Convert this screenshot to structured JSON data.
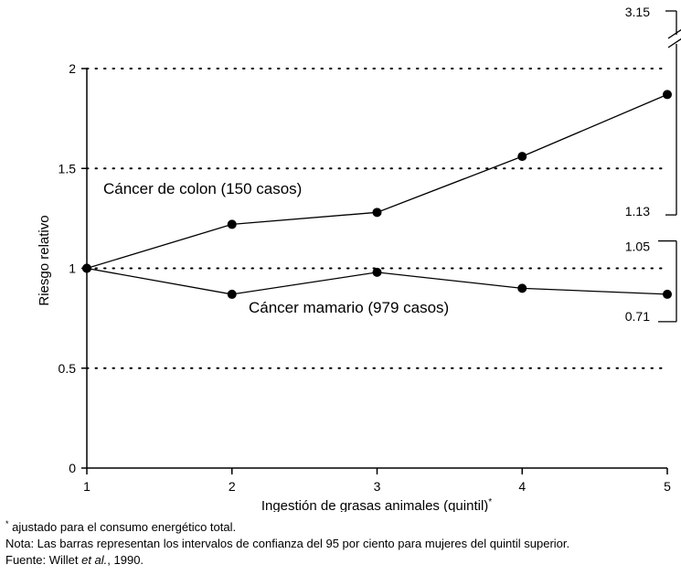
{
  "chart_data": {
    "type": "line",
    "xlabel": "Ingestión de grasas animales (quintil)",
    "xlabel_sup": "*",
    "ylabel": "Riesgo relativo",
    "x": [
      1,
      2,
      3,
      4,
      5
    ],
    "xticks": [
      "1",
      "2",
      "3",
      "4",
      "5"
    ],
    "ylim": [
      0,
      2
    ],
    "yticks": [
      {
        "value": 0,
        "label": "0"
      },
      {
        "value": 0.5,
        "label": "0.5"
      },
      {
        "value": 1,
        "label": "1"
      },
      {
        "value": 1.5,
        "label": "1.5"
      },
      {
        "value": 2,
        "label": "2"
      }
    ],
    "grid": "dotted horizontal",
    "series": [
      {
        "name": "Cáncer de colon (150 casos)",
        "values": [
          1.0,
          1.22,
          1.28,
          1.56,
          1.87
        ]
      },
      {
        "name": "Cáncer mamario (979 casos)",
        "values": [
          1.0,
          0.87,
          0.98,
          0.9,
          0.87
        ]
      }
    ],
    "confidence_intervals": [
      {
        "series": "Cáncer de colon (150 casos)",
        "x": 5,
        "low": 1.13,
        "high": 3.15,
        "low_label": "1.13",
        "high_label": "3.15",
        "axis_break": true
      },
      {
        "series": "Cáncer mamario (979 casos)",
        "x": 5,
        "low": 0.71,
        "high": 1.05,
        "low_label": "0.71",
        "high_label": "1.05"
      }
    ]
  },
  "notes": {
    "footnote_mark": "*",
    "footnote": " ajustado para el consumo energético total.",
    "nota": "Nota: Las barras representan los intervalos de confianza del 95 por ciento para mujeres del quintil superior.",
    "fuente_prefix": "Fuente: Willet ",
    "fuente_italic": "et al.",
    "fuente_suffix": ", 1990."
  }
}
